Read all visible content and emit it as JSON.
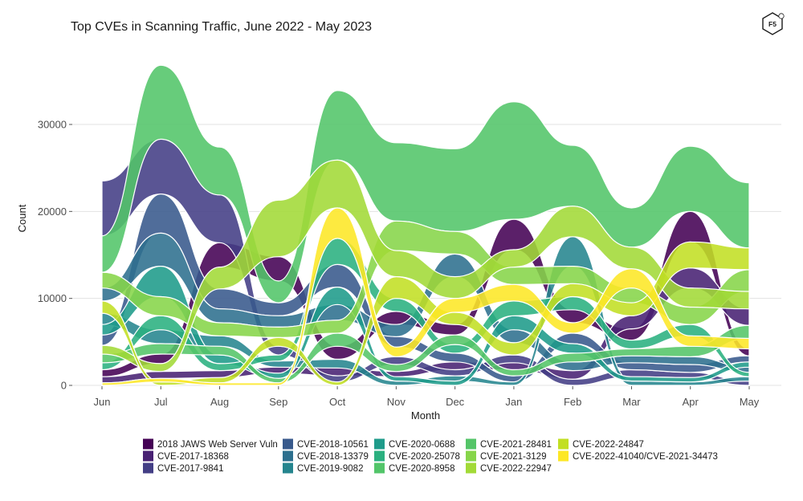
{
  "logo": {
    "text": "F5"
  },
  "chart_data": {
    "type": "area",
    "style": "streamgraph-bump",
    "title": "Top CVEs in Scanning Traffic, June 2022 - May 2023",
    "xlabel": "Month",
    "ylabel": "Count",
    "ylim": [
      0,
      38000
    ],
    "y_ticks": [
      0,
      10000,
      20000,
      30000
    ],
    "y_tick_labels": [
      "0",
      "10000",
      "20000",
      "30000"
    ],
    "grid": true,
    "legend_position": "bottom",
    "categories": [
      "Jun",
      "Jul",
      "Aug",
      "Sep",
      "Oct",
      "Nov",
      "Dec",
      "Jan",
      "Feb",
      "Mar",
      "Apr",
      "May"
    ],
    "series": [
      {
        "name": "2018 JAWS Web Server Vuln",
        "color": "#440154",
        "values": [
          800,
          1100,
          2800,
          2800,
          1500,
          1500,
          1200,
          3500,
          1500,
          1300,
          3500,
          800
        ]
      },
      {
        "name": "CVE-2017-18368",
        "color": "#482173",
        "values": [
          700,
          800,
          800,
          700,
          900,
          600,
          900,
          800,
          1000,
          1500,
          2300,
          1900
        ]
      },
      {
        "name": "CVE-2017-9841",
        "color": "#433e85",
        "values": [
          6300,
          6300,
          5500,
          1000,
          700,
          900,
          700,
          900,
          700,
          800,
          600,
          500
        ]
      },
      {
        "name": "CVE-2018-10561",
        "color": "#38598c",
        "values": [
          1200,
          4500,
          2300,
          1500,
          2600,
          1200,
          1000,
          700,
          1200,
          800,
          900,
          700
        ]
      },
      {
        "name": "CVE-2018-13379",
        "color": "#2d708e",
        "values": [
          1500,
          3800,
          1600,
          1300,
          1800,
          1400,
          2600,
          1500,
          1000,
          800,
          900,
          600
        ]
      },
      {
        "name": "CVE-2019-9082",
        "color": "#25858e",
        "values": [
          1300,
          1600,
          1200,
          700,
          1000,
          500,
          600,
          400,
          3400,
          500,
          400,
          500
        ]
      },
      {
        "name": "CVE-2020-0688",
        "color": "#1e9b8a",
        "values": [
          1200,
          3500,
          1000,
          600,
          2000,
          500,
          500,
          1600,
          1100,
          500,
          500,
          600
        ]
      },
      {
        "name": "CVE-2020-25078",
        "color": "#2ab07f",
        "values": [
          800,
          1600,
          800,
          700,
          3000,
          1500,
          1000,
          1700,
          1500,
          1000,
          1300,
          500
        ]
      },
      {
        "name": "CVE-2020-8958",
        "color": "#52c569",
        "values": [
          4200,
          8500,
          5500,
          2500,
          8000,
          9000,
          9500,
          13500,
          7000,
          4500,
          7500,
          7500
        ]
      },
      {
        "name": "CVE-2021-28481",
        "color": "#54c568",
        "values": [
          1000,
          1200,
          1000,
          500,
          1500,
          800,
          1100,
          700,
          1000,
          800,
          1200,
          1500
        ]
      },
      {
        "name": "CVE-2021-3129",
        "color": "#86d549",
        "values": [
          1800,
          2200,
          1500,
          1200,
          1500,
          3400,
          2600,
          2000,
          2000,
          1700,
          2000,
          2500
        ]
      },
      {
        "name": "CVE-2022-22947",
        "color": "#a2da37",
        "values": [
          1000,
          900,
          2500,
          6500,
          5500,
          3000,
          2500,
          2000,
          3500,
          2500,
          2200,
          2000
        ]
      },
      {
        "name": "CVE-2022-24847",
        "color": "#c2df23",
        "values": [
          1400,
          400,
          600,
          1000,
          400,
          2500,
          1400,
          1400,
          1500,
          1500,
          3000,
          2500
        ]
      },
      {
        "name": "CVE-2022-41040/CVE-2021-34473",
        "color": "#fde725",
        "values": [
          300,
          400,
          300,
          300,
          3500,
          1100,
          1600,
          1900,
          1200,
          2200,
          1200,
          1200
        ]
      }
    ]
  }
}
